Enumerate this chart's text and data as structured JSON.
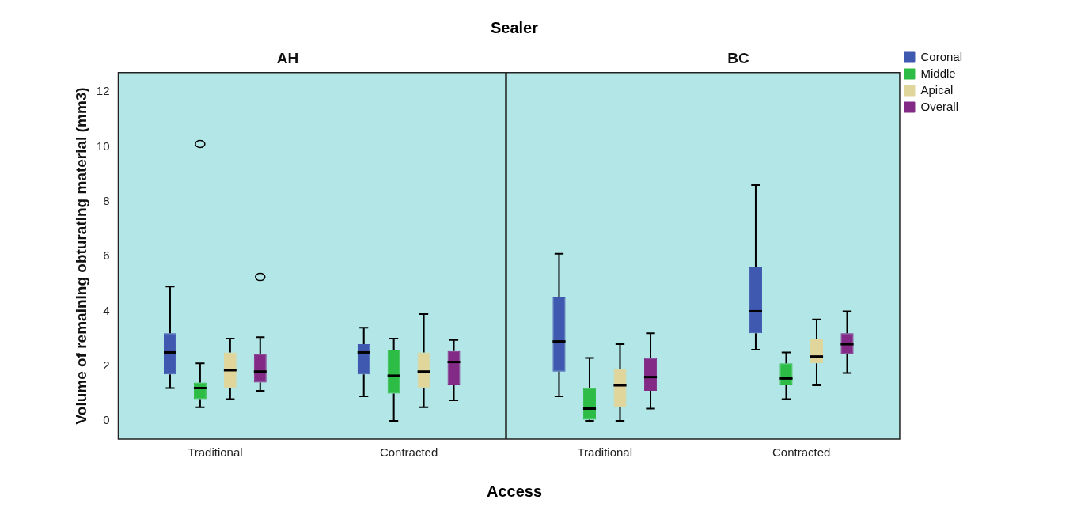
{
  "chart_data": [
    {
      "type": "box",
      "title": "AH",
      "xlabel": "Access",
      "ylabel": "Volume of remaining obturating material (mm3)",
      "annotations": [
        "Sealer"
      ],
      "categories": [
        "Traditional",
        "Contracted"
      ],
      "ylim": [
        -0.66,
        12.7
      ],
      "yticks": [
        0,
        2,
        4,
        6,
        8,
        10,
        12
      ],
      "series": [
        {
          "color": "#3f58b0",
          "boxes": [
            {
              "low": 1.2,
              "q1": 1.7,
              "median": 2.5,
              "q3": 3.2,
              "high": 4.9
            },
            {
              "low": 0.9,
              "q1": 1.7,
              "median": 2.5,
              "q3": 2.8,
              "high": 3.4
            }
          ]
        },
        {
          "color": "#2dbc45",
          "boxes": [
            {
              "low": 0.5,
              "q1": 0.8,
              "median": 1.2,
              "q3": 1.4,
              "high": 2.1,
              "outliers": [
                10.1
              ]
            },
            {
              "low": 0,
              "q1": 1.0,
              "median": 1.65,
              "q3": 2.6,
              "high": 3.0
            }
          ]
        },
        {
          "color": "#e0d59a",
          "boxes": [
            {
              "low": 0.8,
              "q1": 1.2,
              "median": 1.85,
              "q3": 2.5,
              "high": 3.0
            },
            {
              "low": 0.5,
              "q1": 1.2,
              "median": 1.8,
              "q3": 2.5,
              "high": 3.9
            }
          ]
        },
        {
          "color": "#822a86",
          "boxes": [
            {
              "low": 1.1,
              "q1": 1.4,
              "median": 1.8,
              "q3": 2.45,
              "high": 3.05,
              "outliers": [
                5.25
              ]
            },
            {
              "low": 0.75,
              "q1": 1.3,
              "median": 2.15,
              "q3": 2.55,
              "high": 2.95
            }
          ]
        }
      ]
    },
    {
      "type": "box",
      "title": "BC",
      "categories": [
        "Traditional",
        "Contracted"
      ],
      "ylim": [
        -0.66,
        12.7
      ],
      "yticks": [
        0,
        2,
        4,
        6,
        8,
        10,
        12
      ],
      "tick_labels": "x",
      "legend": "top right",
      "series": [
        {
          "name": "Coronal",
          "color": "#3f58b0",
          "boxes": [
            {
              "low": 0.9,
              "q1": 1.8,
              "median": 2.9,
              "q3": 4.5,
              "high": 6.1
            },
            {
              "low": 2.6,
              "q1": 3.2,
              "median": 4.0,
              "q3": 5.6,
              "high": 8.6
            }
          ]
        },
        {
          "name": "Middle",
          "color": "#2dbc45",
          "boxes": [
            {
              "low": 0,
              "q1": 0.05,
              "median": 0.45,
              "q3": 1.2,
              "high": 2.3
            },
            {
              "low": 0.8,
              "q1": 1.3,
              "median": 1.55,
              "q3": 2.1,
              "high": 2.5
            }
          ]
        },
        {
          "name": "Apical",
          "color": "#e0d59a",
          "boxes": [
            {
              "low": 0,
              "q1": 0.5,
              "median": 1.3,
              "q3": 1.9,
              "high": 2.8
            },
            {
              "low": 1.3,
              "q1": 2.1,
              "median": 2.35,
              "q3": 3.0,
              "high": 3.7
            }
          ]
        },
        {
          "name": "Overall",
          "color": "#822a86",
          "boxes": [
            {
              "low": 0.45,
              "q1": 1.1,
              "median": 1.6,
              "q3": 2.3,
              "high": 3.2
            },
            {
              "low": 1.75,
              "q1": 2.45,
              "median": 2.8,
              "q3": 3.2,
              "high": 4.0
            }
          ]
        }
      ]
    }
  ]
}
